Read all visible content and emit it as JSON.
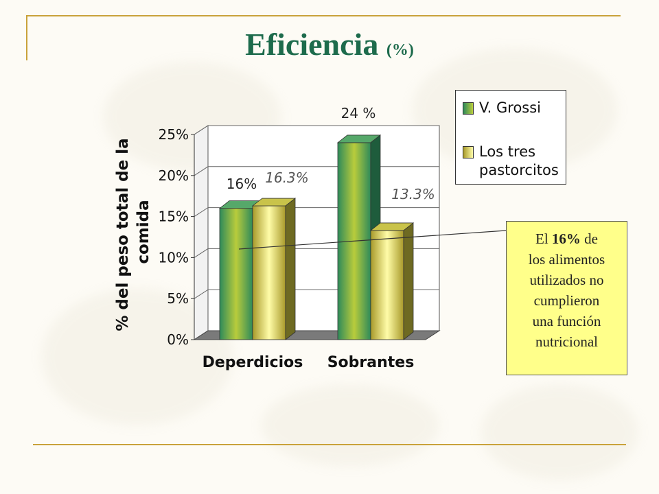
{
  "slide": {
    "title_main": "Eficiencia",
    "title_unit": "(%)",
    "callout": {
      "prefix": "El",
      "highlight": "16%",
      "suffix": "de",
      "lines": [
        "los alimentos",
        "utilizados no",
        "cumplieron",
        "una función",
        "nutricional"
      ]
    }
  },
  "colors": {
    "series_1": "#3f9a5e",
    "series_2": "#d8d24a",
    "rule": "#c9a23a",
    "title": "#1d6b4c",
    "callout_bg": "#ffff8a"
  },
  "chart_data": {
    "type": "bar",
    "ylabel": "% del peso total de la comida",
    "ylim": [
      0,
      25
    ],
    "yticks": [
      "0%",
      "5%",
      "10%",
      "15%",
      "20%",
      "25%"
    ],
    "ytick_values": [
      0,
      5,
      10,
      15,
      20,
      25
    ],
    "categories": [
      "Deperdicios",
      "Sobrantes"
    ],
    "series": [
      {
        "name": "V. Grossi",
        "values": [
          16,
          24
        ],
        "labels": [
          "16%",
          "24 %"
        ]
      },
      {
        "name": "Los tres pastorcitos",
        "values": [
          16.3,
          13.3
        ],
        "labels": [
          "16.3%",
          "13.3%"
        ]
      }
    ],
    "legend": {
      "position": "top-right",
      "items": [
        "V. Grossi",
        "Los tres",
        "pastorcitos"
      ]
    },
    "grid": true
  }
}
